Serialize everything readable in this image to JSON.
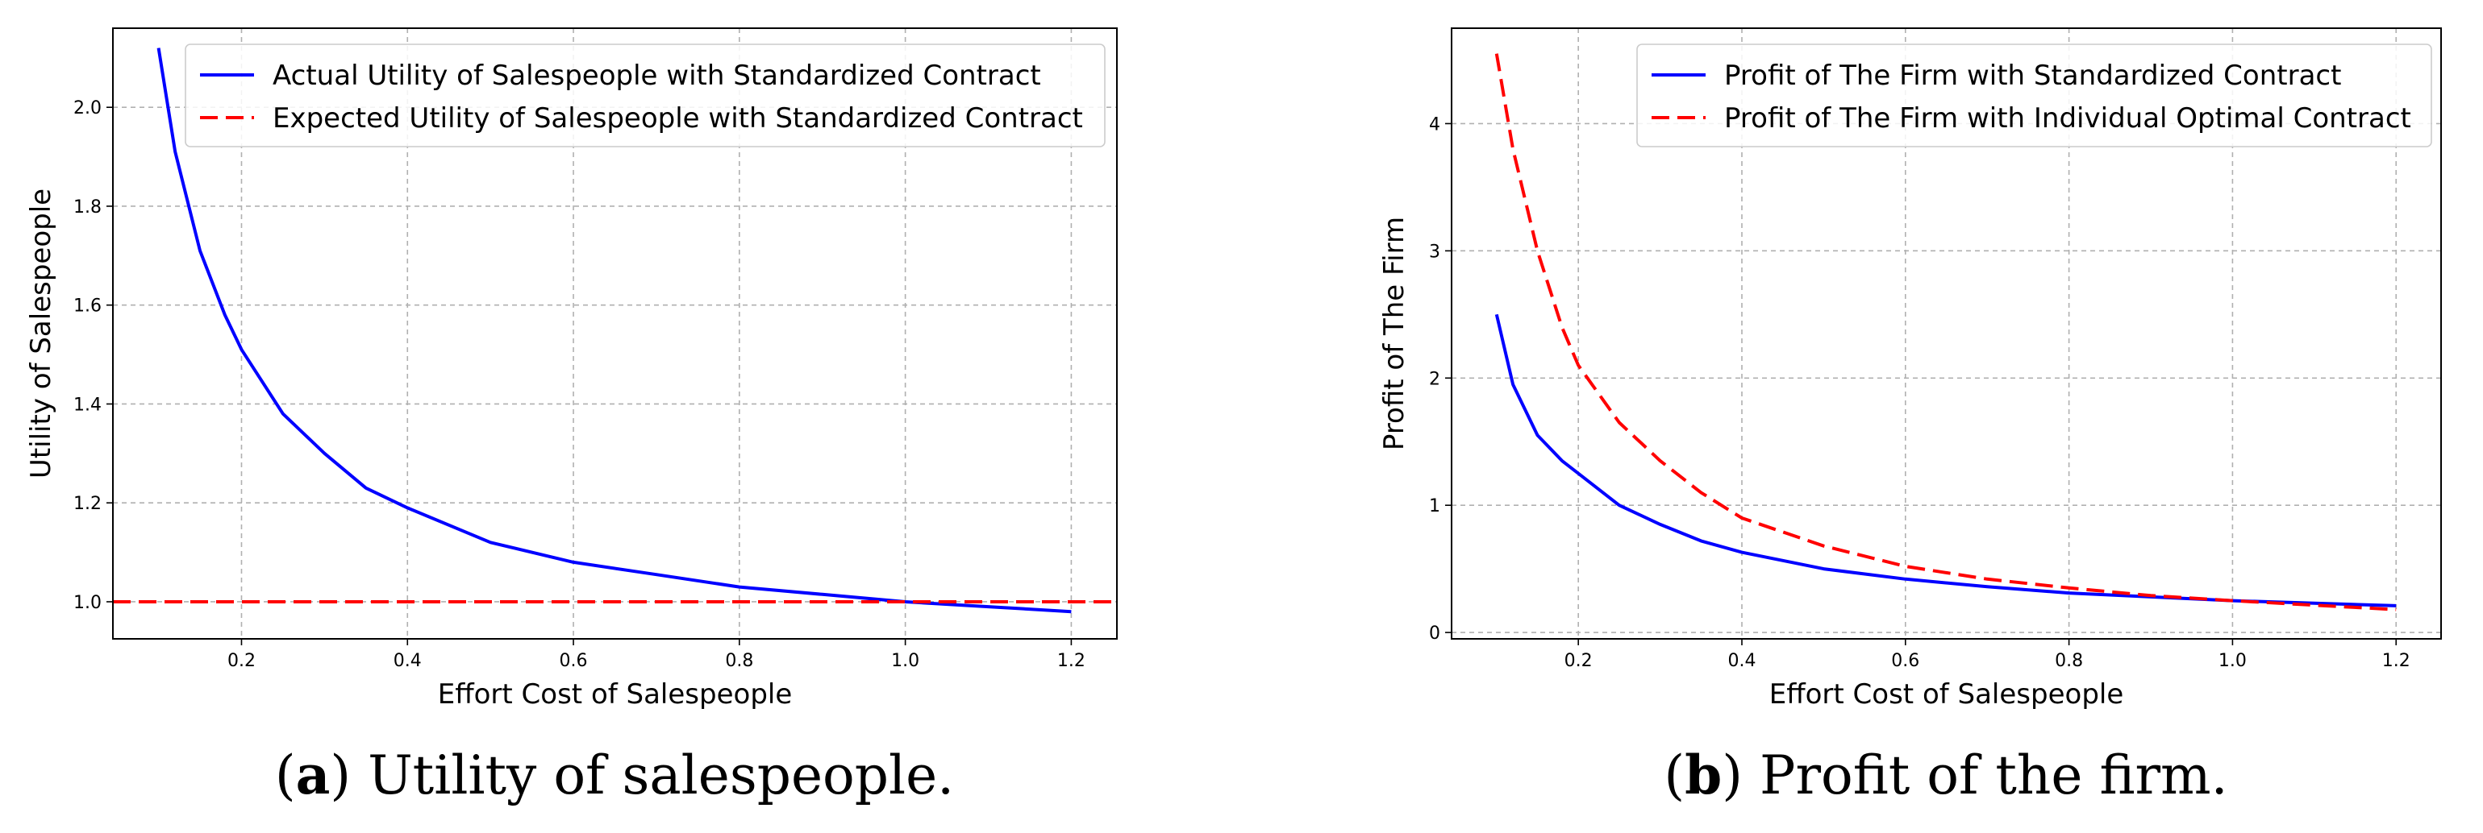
{
  "chart_data": [
    {
      "type": "line",
      "caption_letter": "a",
      "caption_text": "Utility of salespeople.",
      "xlabel": "Effort Cost of Salespeople",
      "ylabel": "Utility of Salespeople",
      "xlim": [
        0.045,
        1.255
      ],
      "ylim": [
        0.925,
        2.16
      ],
      "xticks": [
        0.2,
        0.4,
        0.6,
        0.8,
        1.0,
        1.2
      ],
      "xtick_labels": [
        "0.2",
        "0.4",
        "0.6",
        "0.8",
        "1.0",
        "1.2"
      ],
      "yticks": [
        1.0,
        1.2,
        1.4,
        1.6,
        1.8,
        2.0
      ],
      "ytick_labels": [
        "1.0",
        "1.2",
        "1.4",
        "1.6",
        "1.8",
        "2.0"
      ],
      "grid": true,
      "legend_position": "top-right",
      "series": [
        {
          "name": "Actual Utility of Salespeople with Standardized Contract",
          "color": "#0000ff",
          "style": "solid",
          "x": [
            0.1,
            0.12,
            0.15,
            0.18,
            0.2,
            0.25,
            0.3,
            0.35,
            0.4,
            0.5,
            0.6,
            0.7,
            0.8,
            0.9,
            1.0,
            1.1,
            1.2
          ],
          "y": [
            2.12,
            1.91,
            1.71,
            1.58,
            1.51,
            1.38,
            1.3,
            1.23,
            1.19,
            1.12,
            1.08,
            1.055,
            1.03,
            1.015,
            1.0,
            0.99,
            0.98
          ]
        },
        {
          "name": "Expected Utility of Salespeople with Standardized Contract",
          "color": "#ff0000",
          "style": "dashed",
          "x": [
            0.045,
            1.255
          ],
          "y": [
            1.0,
            1.0
          ]
        }
      ]
    },
    {
      "type": "line",
      "caption_letter": "b",
      "caption_text": "Profit of the firm.",
      "xlabel": "Effort Cost of Salespeople",
      "ylabel": "Profit of The Firm",
      "xlim": [
        0.045,
        1.255
      ],
      "ylim": [
        -0.05,
        4.75
      ],
      "xticks": [
        0.2,
        0.4,
        0.6,
        0.8,
        1.0,
        1.2
      ],
      "xtick_labels": [
        "0.2",
        "0.4",
        "0.6",
        "0.8",
        "1.0",
        "1.2"
      ],
      "yticks": [
        0,
        1,
        2,
        3,
        4
      ],
      "ytick_labels": [
        "0",
        "1",
        "2",
        "3",
        "4"
      ],
      "grid": true,
      "legend_position": "top-right",
      "series": [
        {
          "name": "Profit of The Firm with Standardized Contract",
          "color": "#0000ff",
          "style": "solid",
          "x": [
            0.1,
            0.12,
            0.15,
            0.18,
            0.2,
            0.25,
            0.3,
            0.35,
            0.4,
            0.5,
            0.6,
            0.7,
            0.8,
            0.9,
            1.0,
            1.1,
            1.2
          ],
          "y": [
            2.5,
            1.95,
            1.55,
            1.35,
            1.25,
            1.0,
            0.85,
            0.72,
            0.63,
            0.5,
            0.42,
            0.36,
            0.31,
            0.28,
            0.25,
            0.23,
            0.21
          ]
        },
        {
          "name": "Profit of The Firm with Individual Optimal Contract",
          "color": "#ff0000",
          "style": "dashed",
          "x": [
            0.1,
            0.12,
            0.15,
            0.18,
            0.2,
            0.25,
            0.3,
            0.35,
            0.4,
            0.5,
            0.6,
            0.7,
            0.8,
            0.9,
            1.0,
            1.1,
            1.2
          ],
          "y": [
            4.55,
            3.8,
            3.0,
            2.4,
            2.1,
            1.65,
            1.35,
            1.1,
            0.9,
            0.68,
            0.52,
            0.42,
            0.35,
            0.29,
            0.25,
            0.215,
            0.18
          ]
        }
      ]
    }
  ]
}
